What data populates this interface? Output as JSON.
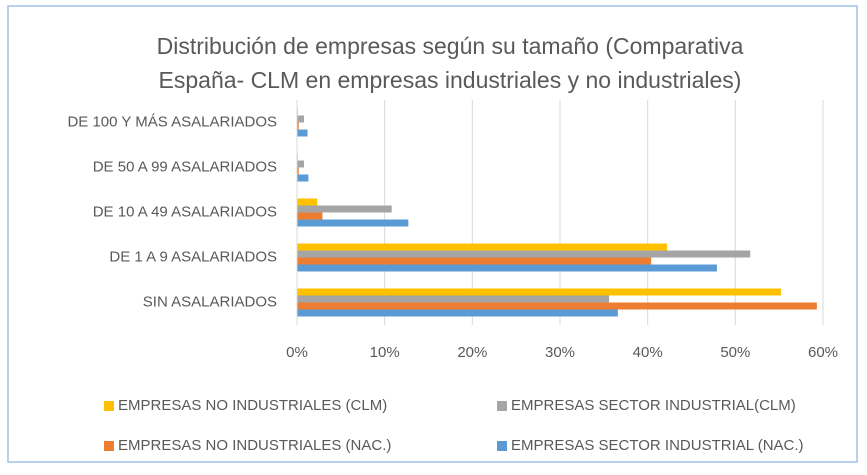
{
  "chart_data": {
    "type": "bar",
    "orientation": "horizontal",
    "title": [
      "Distribución de empresas según su tamaño (Comparativa",
      "España- CLM en empresas industriales y no industriales)"
    ],
    "categories": [
      "SIN ASALARIADOS",
      "DE 1 A 9 ASALARIADOS",
      "DE 10 A 49 ASALARIADOS",
      "DE 50 A 99 ASALARIADOS",
      "DE 100 Y MÁS ASALARIADOS"
    ],
    "series": [
      {
        "name": "EMPRESAS NO INDUSTRIALES (CLM)",
        "color": "#ffc000",
        "values": [
          55.2,
          42.2,
          2.3,
          0.1,
          0.1
        ]
      },
      {
        "name": "EMPRESAS SECTOR INDUSTRIAL(CLM)",
        "color": "#a5a5a5",
        "values": [
          35.6,
          51.7,
          10.8,
          0.8,
          0.8
        ]
      },
      {
        "name": "EMPRESAS NO INDUSTRIALES (NAC.)",
        "color": "#ed7d31",
        "values": [
          59.3,
          40.4,
          2.9,
          0.2,
          0.2
        ]
      },
      {
        "name": "EMPRESAS SECTOR INDUSTRIAL (NAC.)",
        "color": "#5b9bd5",
        "values": [
          36.6,
          47.9,
          12.7,
          1.3,
          1.2
        ]
      }
    ],
    "xlim": [
      0,
      60
    ],
    "xticks": [
      {
        "value": 0,
        "label": "0%"
      },
      {
        "value": 10,
        "label": "10%"
      },
      {
        "value": 20,
        "label": "20%"
      },
      {
        "value": 30,
        "label": "30%"
      },
      {
        "value": 40,
        "label": "40%"
      },
      {
        "value": 50,
        "label": "50%"
      },
      {
        "value": 60,
        "label": "60%"
      }
    ],
    "grid": true,
    "legend": "bottom"
  }
}
